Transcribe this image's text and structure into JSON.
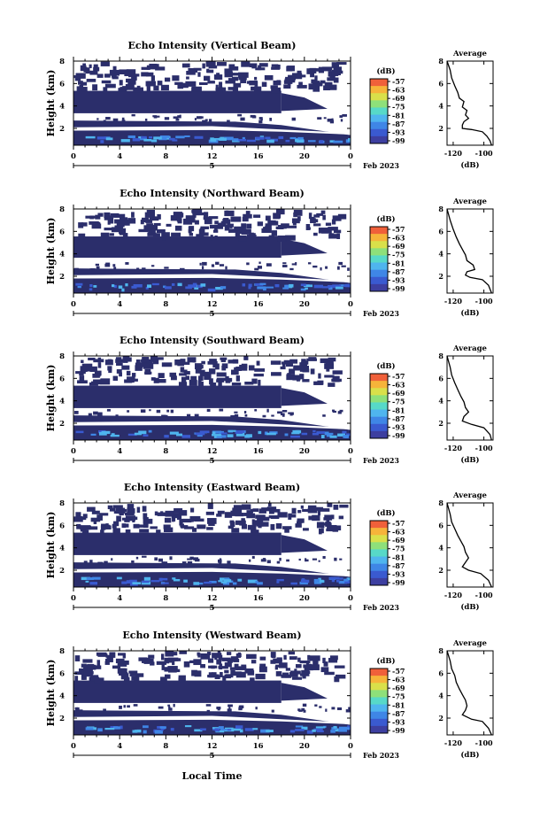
{
  "colors": {
    "background": "#ffffff",
    "navy": "#2b2e6b",
    "scale": [
      "#3d3fa0",
      "#3a5ad0",
      "#3f86e6",
      "#4fb5ee",
      "#57d9c8",
      "#8ee07a",
      "#d9e04a",
      "#f6b43a",
      "#f0603a"
    ]
  },
  "figure": {
    "xlabel": "Local Time",
    "date_label": "Feb 2023"
  },
  "chart_data": [
    {
      "type": "heatmap",
      "title": "Echo Intensity (Vertical Beam)",
      "ylabel": "Height (km)",
      "xlabel": "",
      "x_ticks": [
        "0",
        "4",
        "8",
        "12",
        "16",
        "20",
        "0"
      ],
      "x_sub_label": "5",
      "y_ticks": [
        "2",
        "4",
        "6",
        "8"
      ],
      "xlim": [
        0,
        24
      ],
      "ylim": [
        0.5,
        8
      ],
      "colorbar": {
        "label": "(dB)",
        "ticks": [
          "-57",
          "-63",
          "-69",
          "-75",
          "-81",
          "-87",
          "-93",
          "-99"
        ]
      },
      "layers": [
        {
          "level": -99,
          "from_height": 3.3,
          "to_height": 5.4,
          "note": ""
        },
        {
          "level": -99,
          "from_height": 0.7,
          "to_height": 2.9,
          "note": ""
        }
      ],
      "profile": {
        "title": "Average",
        "xlabel": "(dB)",
        "x_ticks": [
          "-120",
          "-100"
        ],
        "y_ticks": [
          "2",
          "4",
          "6",
          "8"
        ],
        "xlim": [
          -124,
          -94
        ],
        "ylim": [
          0.5,
          8
        ],
        "points": [
          [
            -124,
            8.0
          ],
          [
            -122,
            7.2
          ],
          [
            -121,
            6.5
          ],
          [
            -119,
            5.8
          ],
          [
            -117,
            5.2
          ],
          [
            -116,
            4.7
          ],
          [
            -113,
            4.4
          ],
          [
            -114,
            3.9
          ],
          [
            -111,
            3.6
          ],
          [
            -112,
            3.2
          ],
          [
            -110,
            2.9
          ],
          [
            -113,
            2.6
          ],
          [
            -114,
            2.3
          ],
          [
            -114,
            2.0
          ],
          [
            -108,
            1.9
          ],
          [
            -101,
            1.7
          ],
          [
            -98,
            1.3
          ],
          [
            -96,
            0.9
          ],
          [
            -95,
            0.5
          ]
        ]
      }
    },
    {
      "type": "heatmap",
      "title": "Echo Intensity (Northward Beam)",
      "ylabel": "Height (km)",
      "x_ticks": [
        "0",
        "4",
        "8",
        "12",
        "16",
        "20",
        "0"
      ],
      "x_sub_label": "5",
      "y_ticks": [
        "2",
        "4",
        "6",
        "8"
      ],
      "xlim": [
        0,
        24
      ],
      "ylim": [
        0.5,
        8
      ],
      "colorbar": {
        "label": "(dB)",
        "ticks": [
          "-57",
          "-63",
          "-69",
          "-75",
          "-81",
          "-87",
          "-93",
          "-99"
        ]
      },
      "profile": {
        "title": "Average",
        "xlabel": "(dB)",
        "x_ticks": [
          "-120",
          "-100"
        ],
        "y_ticks": [
          "2",
          "4",
          "6",
          "8"
        ],
        "xlim": [
          -124,
          -94
        ],
        "ylim": [
          0.5,
          8
        ],
        "points": [
          [
            -124,
            8.0
          ],
          [
            -122,
            7.0
          ],
          [
            -120,
            6.2
          ],
          [
            -118,
            5.5
          ],
          [
            -116,
            4.9
          ],
          [
            -114,
            4.4
          ],
          [
            -112,
            3.9
          ],
          [
            -111,
            3.4
          ],
          [
            -107,
            3.0
          ],
          [
            -106,
            2.6
          ],
          [
            -111,
            2.4
          ],
          [
            -112,
            2.1
          ],
          [
            -109,
            1.9
          ],
          [
            -101,
            1.7
          ],
          [
            -97,
            1.2
          ],
          [
            -95,
            0.5
          ]
        ]
      }
    },
    {
      "type": "heatmap",
      "title": "Echo Intensity (Southward Beam)",
      "ylabel": "Height (km)",
      "x_ticks": [
        "0",
        "4",
        "8",
        "12",
        "16",
        "20",
        "0"
      ],
      "x_sub_label": "5",
      "y_ticks": [
        "2",
        "4",
        "6",
        "8"
      ],
      "xlim": [
        0,
        24
      ],
      "ylim": [
        0.5,
        8
      ],
      "colorbar": {
        "label": "(dB)",
        "ticks": [
          "-57",
          "-63",
          "-69",
          "-75",
          "-81",
          "-87",
          "-93",
          "-99"
        ]
      },
      "profile": {
        "title": "Average",
        "xlabel": "(dB)",
        "x_ticks": [
          "-120",
          "-100"
        ],
        "y_ticks": [
          "2",
          "4",
          "6",
          "8"
        ],
        "xlim": [
          -124,
          -94
        ],
        "ylim": [
          0.5,
          8
        ],
        "points": [
          [
            -124,
            8.0
          ],
          [
            -122,
            7.0
          ],
          [
            -121,
            6.3
          ],
          [
            -119,
            5.6
          ],
          [
            -117,
            5.0
          ],
          [
            -115,
            4.4
          ],
          [
            -113,
            3.9
          ],
          [
            -112,
            3.4
          ],
          [
            -110,
            3.0
          ],
          [
            -113,
            2.6
          ],
          [
            -114,
            2.2
          ],
          [
            -108,
            1.9
          ],
          [
            -100,
            1.6
          ],
          [
            -96,
            1.0
          ],
          [
            -95,
            0.5
          ]
        ]
      }
    },
    {
      "type": "heatmap",
      "title": "Echo Intensity (Eastward Beam)",
      "ylabel": "Height (km)",
      "x_ticks": [
        "0",
        "4",
        "8",
        "12",
        "16",
        "20",
        "0"
      ],
      "x_sub_label": "5",
      "y_ticks": [
        "2",
        "4",
        "6",
        "8"
      ],
      "xlim": [
        0,
        24
      ],
      "ylim": [
        0.5,
        8
      ],
      "colorbar": {
        "label": "(dB)",
        "ticks": [
          "-57",
          "-63",
          "-69",
          "-75",
          "-81",
          "-87",
          "-93",
          "-99"
        ]
      },
      "profile": {
        "title": "Average",
        "xlabel": "(dB)",
        "x_ticks": [
          "-120",
          "-100"
        ],
        "y_ticks": [
          "2",
          "4",
          "6",
          "8"
        ],
        "xlim": [
          -124,
          -94
        ],
        "ylim": [
          0.5,
          8
        ],
        "points": [
          [
            -124,
            8.0
          ],
          [
            -122,
            7.0
          ],
          [
            -121,
            6.3
          ],
          [
            -119,
            5.7
          ],
          [
            -117,
            5.1
          ],
          [
            -115,
            4.6
          ],
          [
            -113,
            4.1
          ],
          [
            -112,
            3.6
          ],
          [
            -110,
            3.1
          ],
          [
            -112,
            2.7
          ],
          [
            -114,
            2.3
          ],
          [
            -110,
            2.0
          ],
          [
            -102,
            1.7
          ],
          [
            -97,
            1.1
          ],
          [
            -95,
            0.5
          ]
        ]
      }
    },
    {
      "type": "heatmap",
      "title": "Echo Intensity (Westward Beam)",
      "ylabel": "Height (km)",
      "x_ticks": [
        "0",
        "4",
        "8",
        "12",
        "16",
        "20",
        "0"
      ],
      "x_sub_label": "5",
      "y_ticks": [
        "2",
        "4",
        "6",
        "8"
      ],
      "xlim": [
        0,
        24
      ],
      "ylim": [
        0.5,
        8
      ],
      "colorbar": {
        "label": "(dB)",
        "ticks": [
          "-57",
          "-63",
          "-69",
          "-75",
          "-81",
          "-87",
          "-93",
          "-99"
        ]
      },
      "profile": {
        "title": "Average",
        "xlabel": "(dB)",
        "x_ticks": [
          "-120",
          "-100"
        ],
        "y_ticks": [
          "2",
          "4",
          "6",
          "8"
        ],
        "xlim": [
          -124,
          -94
        ],
        "ylim": [
          0.5,
          8
        ],
        "points": [
          [
            -124,
            8.0
          ],
          [
            -122,
            7.1
          ],
          [
            -121,
            6.4
          ],
          [
            -119,
            5.8
          ],
          [
            -118,
            5.2
          ],
          [
            -116,
            4.6
          ],
          [
            -114,
            4.1
          ],
          [
            -112,
            3.6
          ],
          [
            -111,
            3.1
          ],
          [
            -112,
            2.7
          ],
          [
            -114,
            2.3
          ],
          [
            -108,
            1.9
          ],
          [
            -101,
            1.7
          ],
          [
            -97,
            1.1
          ],
          [
            -95,
            0.5
          ]
        ]
      }
    }
  ]
}
